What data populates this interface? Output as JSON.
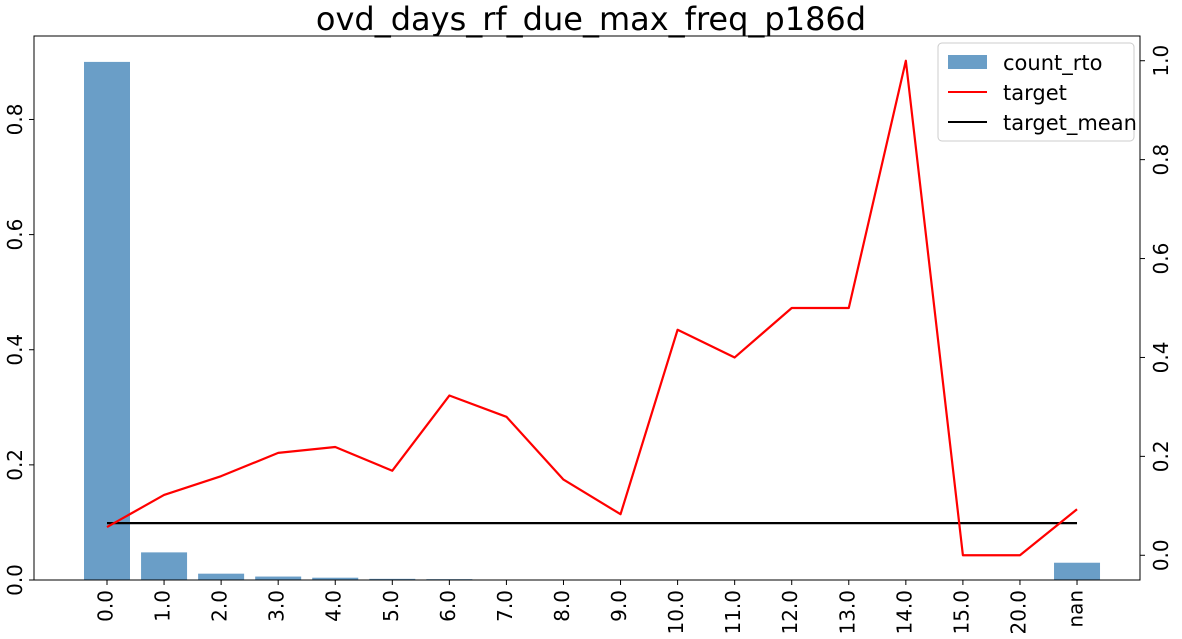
{
  "chart_data": {
    "type": "bar",
    "title": "ovd_days_rf_due_max_freq_p186d",
    "categories": [
      "0.0",
      "1.0",
      "2.0",
      "3.0",
      "4.0",
      "5.0",
      "6.0",
      "7.0",
      "8.0",
      "9.0",
      "10.0",
      "11.0",
      "12.0",
      "13.0",
      "14.0",
      "15.0",
      "20.0",
      "nan"
    ],
    "series": [
      {
        "name": "count_rto",
        "type": "bar",
        "axis": "left",
        "color": "#6a9ec7",
        "values": [
          0.9,
          0.048,
          0.011,
          0.006,
          0.004,
          0.002,
          0.0015,
          0.0008,
          0.0007,
          0.0004,
          0.0003,
          0.0003,
          0.0002,
          0.0002,
          0.0002,
          0.0001,
          0.0001,
          0.03
        ]
      },
      {
        "name": "target",
        "type": "line",
        "axis": "right",
        "color": "#ff0000",
        "values": [
          0.057,
          0.122,
          0.16,
          0.207,
          0.219,
          0.171,
          0.323,
          0.28,
          0.153,
          0.083,
          0.456,
          0.4,
          0.5,
          0.5,
          1.0,
          0.0,
          0.0,
          0.093
        ]
      },
      {
        "name": "target_mean",
        "type": "line",
        "axis": "right",
        "color": "#000000",
        "values": [
          0.065,
          0.065,
          0.065,
          0.065,
          0.065,
          0.065,
          0.065,
          0.065,
          0.065,
          0.065,
          0.065,
          0.065,
          0.065,
          0.065,
          0.065,
          0.065,
          0.065,
          0.065
        ]
      }
    ],
    "y_left": {
      "lim": [
        0,
        0.945
      ],
      "ticks": [
        "0.0",
        "0.2",
        "0.4",
        "0.6",
        "0.8"
      ],
      "tick_values": [
        0,
        0.2,
        0.4,
        0.6,
        0.8
      ]
    },
    "y_right": {
      "lim": [
        -0.05,
        1.05
      ],
      "ticks": [
        "0.0",
        "0.2",
        "0.4",
        "0.6",
        "0.8",
        "1.0"
      ],
      "tick_values": [
        0,
        0.2,
        0.4,
        0.6,
        0.8,
        1.0
      ]
    },
    "legend": "top-right",
    "grid": false
  }
}
